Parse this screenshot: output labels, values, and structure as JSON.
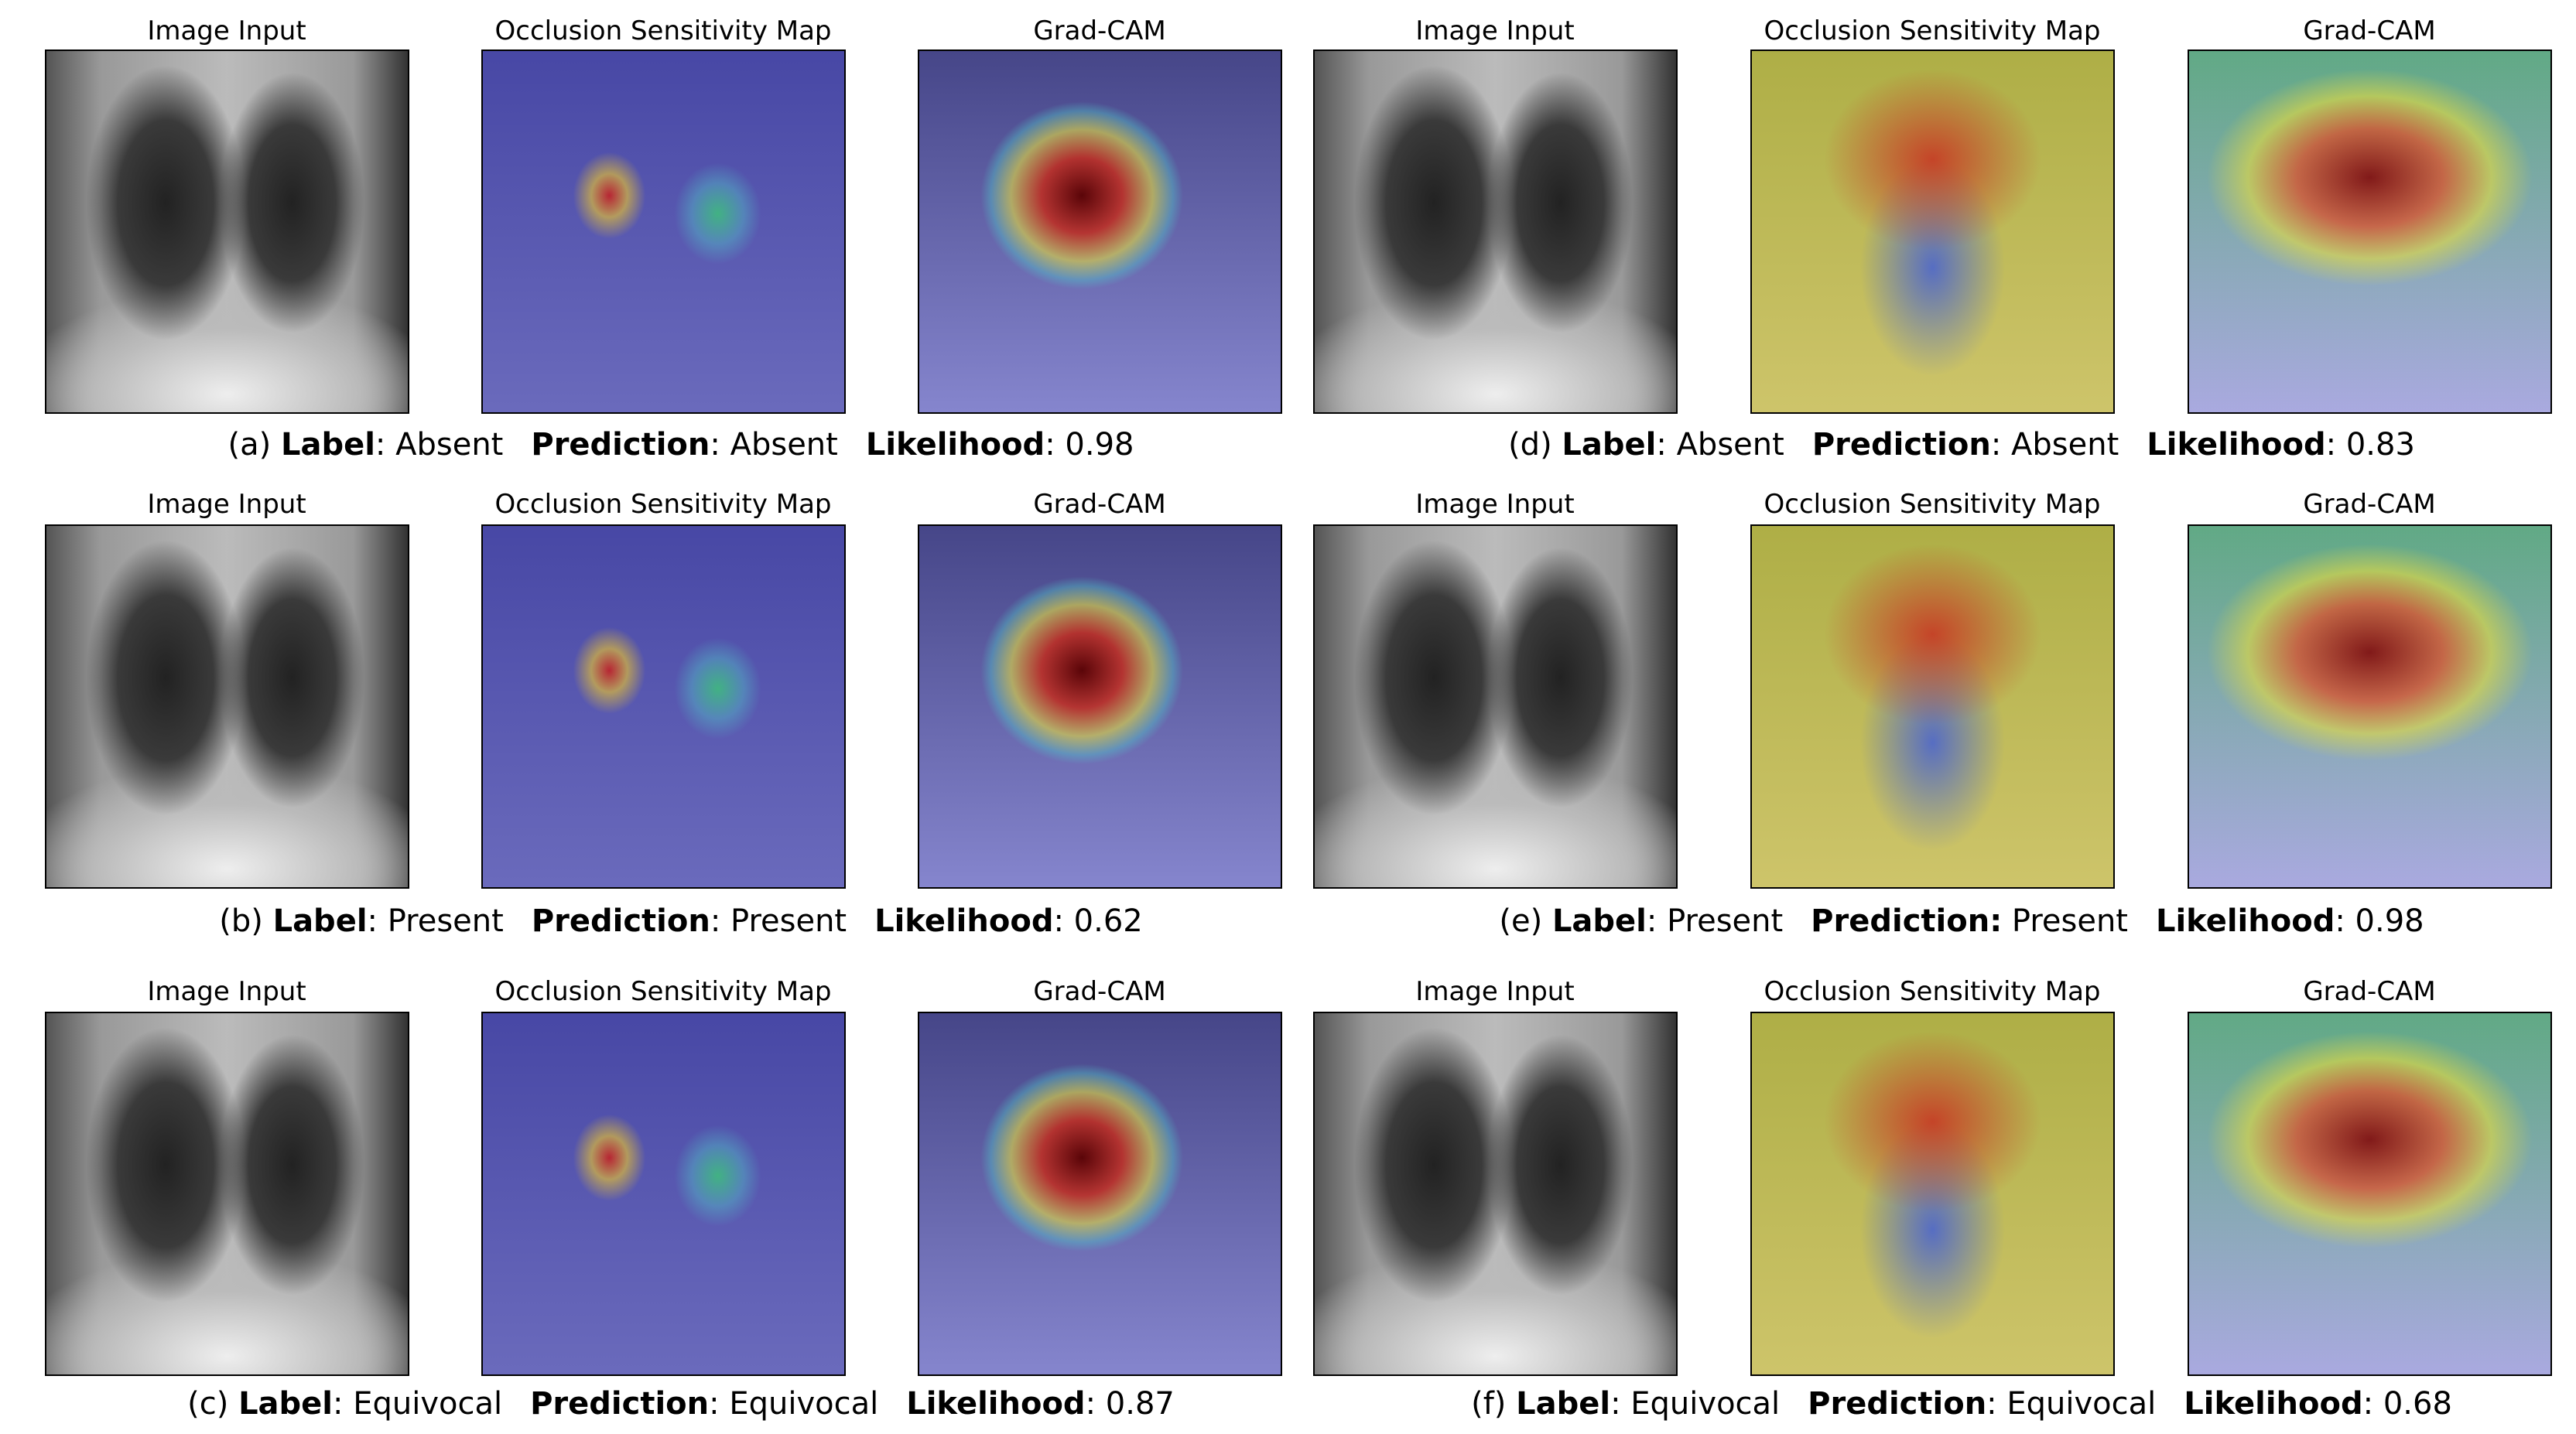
{
  "panels": [
    {
      "tag": "(a)",
      "titles": [
        "Image Input",
        "Occlusion Sensitivity Map",
        "Grad-CAM"
      ],
      "label": {
        "key": "Label",
        "sep": ":",
        "value": "Absent"
      },
      "prediction": {
        "key": "Prediction",
        "sep": ":",
        "value": "Absent"
      },
      "likelihood": {
        "key": "Likelihood",
        "sep": ":",
        "value": 0.98
      }
    },
    {
      "tag": "(d)",
      "titles": [
        "Image Input",
        "Occlusion Sensitivity Map",
        "Grad-CAM"
      ],
      "label": {
        "key": "Label",
        "sep": ":",
        "value": "Absent"
      },
      "prediction": {
        "key": "Prediction",
        "sep": ":",
        "value": "Absent"
      },
      "likelihood": {
        "key": "Likelihood",
        "sep": ":",
        "value": 0.83
      }
    },
    {
      "tag": "(b)",
      "titles": [
        "Image Input",
        "Occlusion Sensitivity Map",
        "Grad-CAM"
      ],
      "label": {
        "key": "Label",
        "sep": ":",
        "value": "Present"
      },
      "prediction": {
        "key": "Prediction",
        "sep": ":",
        "value": "Present"
      },
      "likelihood": {
        "key": "Likelihood",
        "sep": ":",
        "value": 0.62
      }
    },
    {
      "tag": "(e)",
      "titles": [
        "Image Input",
        "Occlusion Sensitivity Map",
        "Grad-CAM"
      ],
      "label": {
        "key": "Label",
        "sep": ":",
        "value": "Present"
      },
      "prediction": {
        "key": "Prediction:",
        "value": "Present"
      },
      "likelihood": {
        "key": "Likelihood",
        "sep": ":",
        "value": 0.98
      }
    },
    {
      "tag": "(c)",
      "titles": [
        "Image Input",
        "Occlusion Sensitivity Map",
        "Grad-CAM"
      ],
      "label": {
        "key": "Label",
        "sep": ":",
        "value": "Equivocal"
      },
      "prediction": {
        "key": "Prediction",
        "sep": ":",
        "value": "Equivocal"
      },
      "likelihood": {
        "key": "Likelihood",
        "sep": ":",
        "value": 0.87
      }
    },
    {
      "tag": "(f)",
      "titles": [
        "Image Input",
        "Occlusion Sensitivity Map",
        "Grad-CAM"
      ],
      "label": {
        "key": "Label",
        "sep": ":",
        "value": "Equivocal"
      },
      "prediction": {
        "key": "Prediction",
        "sep": ":",
        "value": "Equivocal"
      },
      "likelihood": {
        "key": "Likelihood",
        "sep": ":",
        "value": 0.68
      }
    }
  ]
}
